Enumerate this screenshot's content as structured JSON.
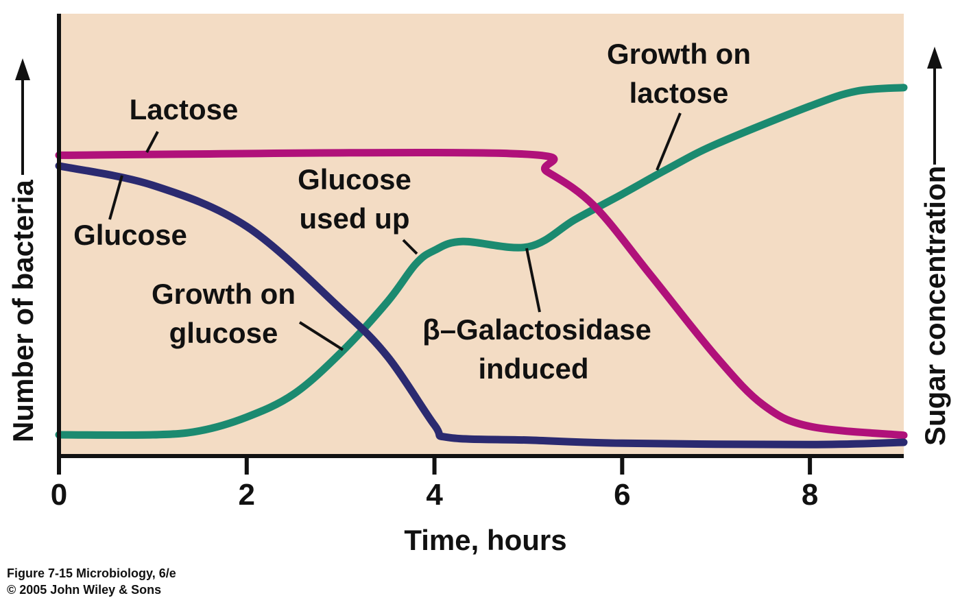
{
  "chart_data": {
    "type": "line",
    "title": "",
    "xlabel": "Time, hours",
    "ylabel_left": "Number of bacteria",
    "ylabel_right": "Sugar concentration",
    "xlim": [
      0,
      9
    ],
    "ylim": [
      0,
      100
    ],
    "x_ticks": [
      0,
      2,
      4,
      6,
      8
    ],
    "x_tick_labels": [
      "0",
      "2",
      "4",
      "6",
      "8"
    ],
    "grid": false,
    "background_color": "#f3dcc4",
    "series": [
      {
        "key": "lactose",
        "color": "#b0117a",
        "x": [
          0,
          4.8,
          5.2,
          5.7,
          6.3,
          7,
          7.5,
          8,
          9
        ],
        "values": [
          68,
          68.4,
          64.3,
          56.6,
          41,
          22.5,
          11.6,
          6.7,
          4.7
        ]
      },
      {
        "key": "glucose",
        "color": "#2b2a70",
        "x": [
          0,
          1,
          2,
          3,
          3.5,
          4,
          4.15,
          5,
          6,
          8,
          9
        ],
        "values": [
          65.6,
          61.2,
          51.9,
          33.3,
          22.5,
          7,
          4.2,
          3.6,
          2.9,
          2.6,
          3.1
        ]
      },
      {
        "key": "growth",
        "color": "#1b8a70",
        "x": [
          0,
          1,
          1.5,
          2,
          2.5,
          3,
          3.5,
          3.8,
          4,
          4.3,
          5,
          5.5,
          6,
          6.5,
          7,
          8,
          8.5,
          9
        ],
        "values": [
          4.8,
          4.8,
          5.7,
          8.8,
          14,
          23.3,
          34.9,
          43.4,
          46.5,
          48.5,
          47.3,
          53.5,
          59.2,
          65.1,
          70.5,
          79.1,
          82.5,
          83.3
        ]
      }
    ],
    "annotations": [
      {
        "lines": [
          "Lactose"
        ],
        "target_series": "lactose"
      },
      {
        "lines": [
          "Glucose"
        ],
        "target_series": "glucose"
      },
      {
        "lines": [
          "Glucose",
          "used up"
        ],
        "target_series": "growth"
      },
      {
        "lines": [
          "Growth on",
          "glucose"
        ],
        "target_series": "glucose"
      },
      {
        "lines": [
          "β–Galactosidase",
          "induced"
        ],
        "target_series": "growth"
      },
      {
        "lines": [
          "Growth on",
          "lactose"
        ],
        "target_series": "growth"
      }
    ]
  },
  "caption": {
    "line1": "Figure 7-15  Microbiology, 6/e",
    "line2": "© 2005 John Wiley & Sons"
  }
}
